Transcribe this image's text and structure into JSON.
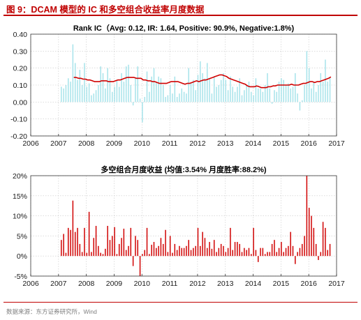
{
  "header": {
    "title": "图 9：DCAM 模型的 IC 和多空组合收益率月度数据"
  },
  "footer": {
    "source": "数据来源：东方证券研究所，Wind"
  },
  "chart_data": [
    {
      "type": "bar",
      "title": "Rank IC（Avg: 0.12, IR: 1.64, Positive: 90.9%, Negative:1.8%)",
      "xlim": [
        2006,
        2017
      ],
      "ylim": [
        -0.2,
        0.4
      ],
      "xticks": [
        "2006",
        "2007",
        "2008",
        "2009",
        "2010",
        "2011",
        "2012",
        "2013",
        "2014",
        "2015",
        "2016",
        "2017"
      ],
      "yticks": [
        "-0.20",
        "-0.10",
        "0.00",
        "0.10",
        "0.20",
        "0.30",
        "0.40"
      ],
      "grid": true,
      "bar_color": "#a6e3ea",
      "line_color": "#d00000",
      "x_start": 2007.1,
      "x_step": 0.0833,
      "series": [
        {
          "kind": "bar",
          "values": [
            0.09,
            0.08,
            0.1,
            0.14,
            0.12,
            0.34,
            0.23,
            0.13,
            0.19,
            0.1,
            0.23,
            0.09,
            0.11,
            0.04,
            0.05,
            0.07,
            0.1,
            0.21,
            0.17,
            0.08,
            0.2,
            0.14,
            0.06,
            0.09,
            0.13,
            0.09,
            0.17,
            0.12,
            0.21,
            0.22,
            0.1,
            -0.02,
            0.14,
            0.21,
            0.02,
            -0.12,
            0.03,
            0.18,
            0.06,
            0.15,
            0.2,
            0.12,
            0.15,
            0.14,
            0.1,
            0.03,
            0.04,
            0.1,
            0.05,
            0.15,
            0.03,
            0.05,
            0.08,
            0.06,
            0.05,
            0.2,
            0.11,
            0.13,
            0.07,
            0.16,
            0.24,
            0.17,
            0.14,
            0.23,
            0.14,
            0.05,
            0.15,
            0.09,
            0.1,
            0.13,
            0.17,
            0.13,
            0.07,
            0.15,
            0.09,
            0.06,
            0.09,
            0.14,
            0.04,
            0.07,
            0.1,
            0.12,
            0.06,
            0.04,
            0.14,
            0.08,
            0.08,
            0.06,
            0.1,
            0.17,
            0.08,
            -0.01,
            0.07,
            0.06,
            0.12,
            0.14,
            0.13,
            0.1,
            0.11,
            0.08,
            0.09,
            0.17,
            0.05,
            -0.05,
            0.01,
            0.1,
            0.3,
            0.2,
            0.08,
            0.12,
            0.06,
            0.1,
            0.17,
            0.12,
            0.25,
            0.12,
            0.14
          ]
        },
        {
          "kind": "line",
          "x_start": 2007.55,
          "values": [
            0.145,
            0.145,
            0.14,
            0.14,
            0.135,
            0.135,
            0.13,
            0.13,
            0.125,
            0.12,
            0.12,
            0.12,
            0.125,
            0.125,
            0.125,
            0.12,
            0.12,
            0.12,
            0.125,
            0.13,
            0.13,
            0.135,
            0.14,
            0.145,
            0.145,
            0.145,
            0.145,
            0.14,
            0.14,
            0.14,
            0.13,
            0.13,
            0.125,
            0.125,
            0.12,
            0.12,
            0.115,
            0.11,
            0.11,
            0.11,
            0.11,
            0.115,
            0.12,
            0.12,
            0.12,
            0.12,
            0.115,
            0.11,
            0.105,
            0.11,
            0.11,
            0.115,
            0.12,
            0.125,
            0.12,
            0.125,
            0.13,
            0.13,
            0.135,
            0.14,
            0.145,
            0.15,
            0.155,
            0.16,
            0.16,
            0.155,
            0.15,
            0.14,
            0.135,
            0.13,
            0.125,
            0.12,
            0.115,
            0.11,
            0.105,
            0.095,
            0.09,
            0.09,
            0.09,
            0.095,
            0.09,
            0.085,
            0.085,
            0.085,
            0.09,
            0.09,
            0.095,
            0.095,
            0.1,
            0.1,
            0.1,
            0.1,
            0.1,
            0.1,
            0.105,
            0.1,
            0.1,
            0.1,
            0.105,
            0.11,
            0.11,
            0.115,
            0.12,
            0.12,
            0.115,
            0.12,
            0.12,
            0.125,
            0.13,
            0.135,
            0.14,
            0.148
          ]
        }
      ]
    },
    {
      "type": "bar",
      "title": "多空组合月度收益 (均值:3.54% 月度胜率:88.2%)",
      "xlim": [
        2006,
        2017
      ],
      "ylim": [
        -5,
        20
      ],
      "xticks": [
        "2006",
        "2007",
        "2008",
        "2009",
        "2010",
        "2011",
        "2012",
        "2013",
        "2014",
        "2015",
        "2016",
        "2017"
      ],
      "yticks": [
        "-5%",
        "0%",
        "5%",
        "10%",
        "15%",
        "20%"
      ],
      "grid": true,
      "bar_color": "#d00000",
      "x_start": 2007.1,
      "x_step": 0.0833,
      "values": [
        4.0,
        5.5,
        0.8,
        7.0,
        6.5,
        13.8,
        6.0,
        7.0,
        3.0,
        1.0,
        7.0,
        0.8,
        11.0,
        1.0,
        4.5,
        7.5,
        2.5,
        0.8,
        0.5,
        1.8,
        7.5,
        4.0,
        5.0,
        7.2,
        0.5,
        3.0,
        4.5,
        6.8,
        1.5,
        2.5,
        7.0,
        -2.5,
        5.0,
        4.0,
        -5.0,
        0.5,
        1.5,
        7.0,
        0.5,
        2.8,
        3.5,
        2.0,
        2.5,
        4.5,
        3.0,
        6.5,
        1.0,
        5.0,
        0.8,
        3.0,
        1.5,
        2.5,
        2.0,
        2.0,
        2.5,
        4.0,
        1.5,
        2.0,
        2.5,
        7.0,
        2.5,
        6.0,
        4.5,
        2.0,
        3.5,
        1.8,
        4.0,
        1.0,
        2.0,
        3.0,
        2.5,
        1.0,
        2.0,
        7.0,
        1.5,
        3.5,
        3.5,
        3.0,
        1.0,
        2.0,
        1.5,
        2.0,
        0.5,
        7.0,
        1.5,
        -1.5,
        2.0,
        2.0,
        0.5,
        1.0,
        1.0,
        3.0,
        4.0,
        1.0,
        2.0,
        3.5,
        1.0,
        2.0,
        2.5,
        6.0,
        2.5,
        -2.0,
        1.0,
        2.0,
        3.0,
        5.0,
        20.0,
        12.0,
        10.0,
        7.0,
        3.0,
        -1.0,
        1.0,
        8.5,
        7.0,
        1.5,
        3.0
      ]
    }
  ]
}
